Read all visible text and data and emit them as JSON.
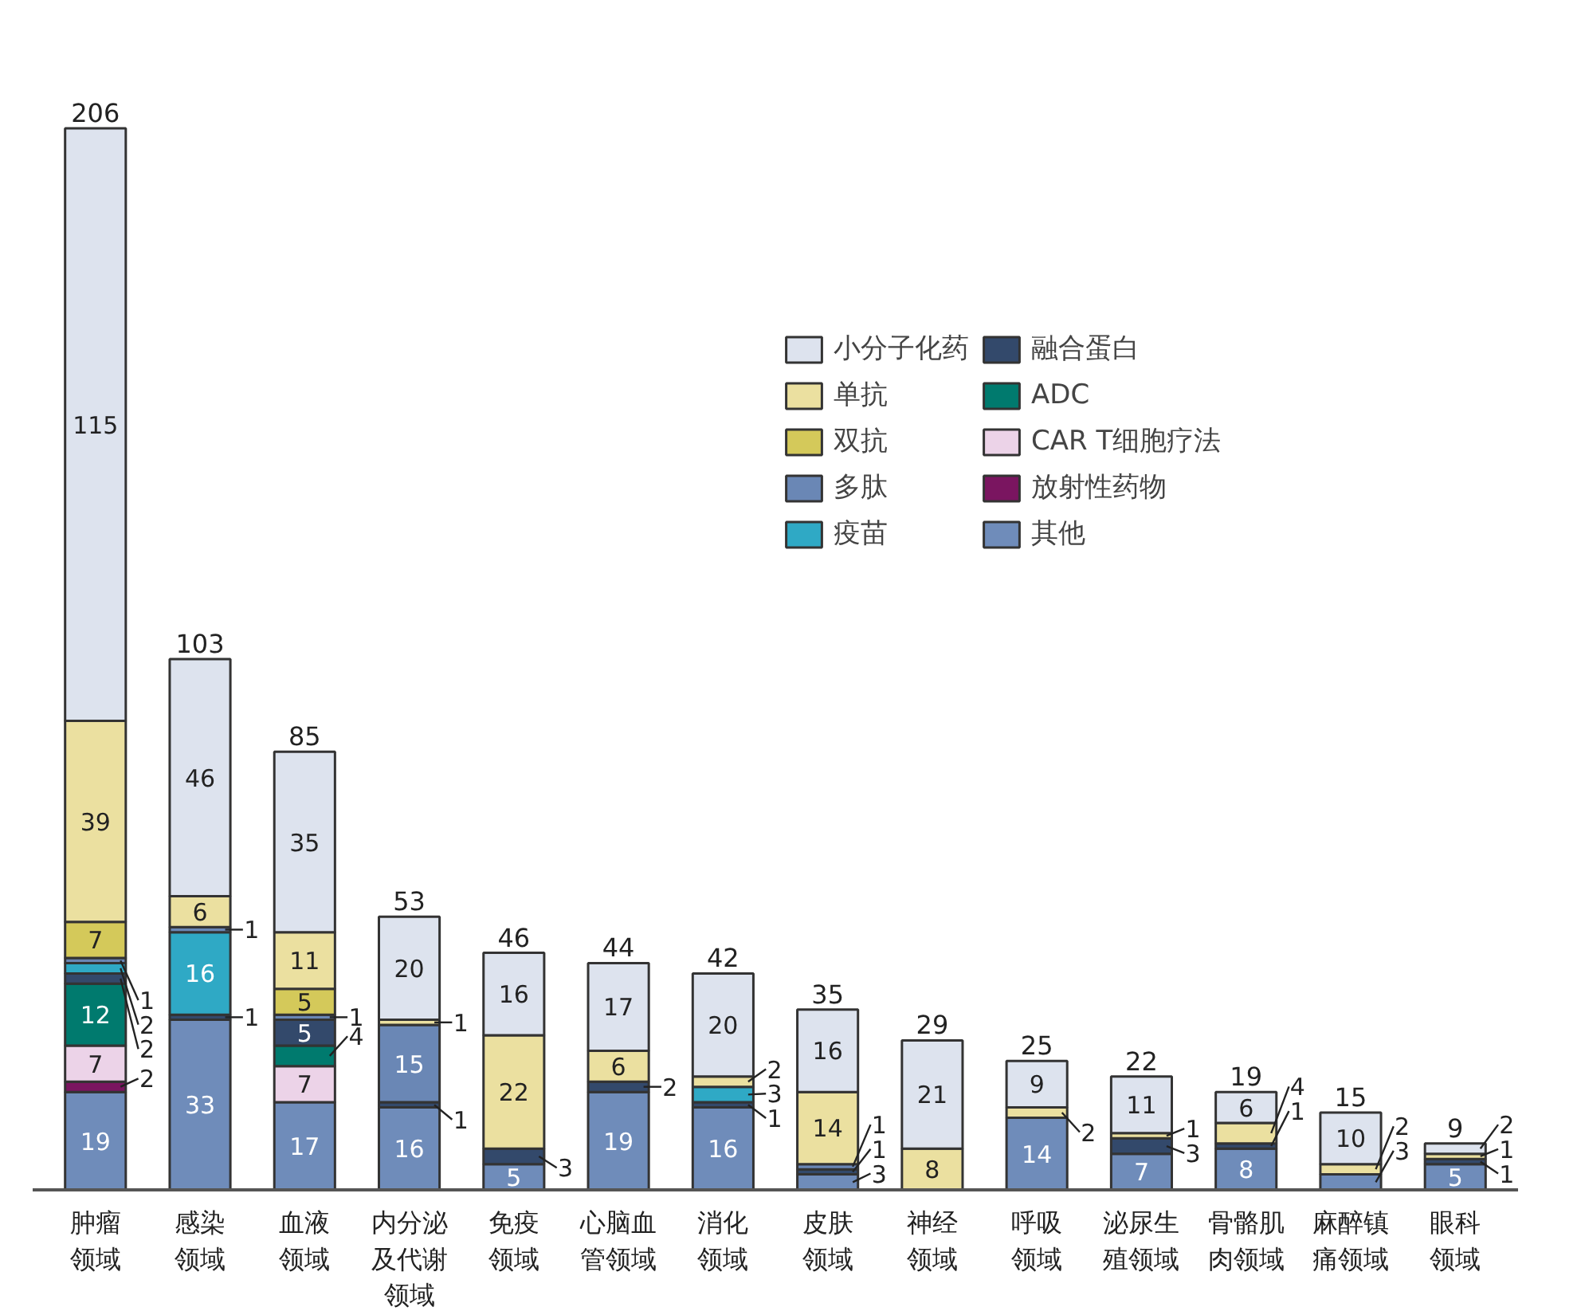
{
  "chart_data": {
    "type": "bar",
    "stacked": true,
    "data_labels": true,
    "legend": "top right",
    "grid": false,
    "categories": [
      "肿瘤领域",
      "感染领域",
      "血液领域",
      "内分泌及代谢领域",
      "免疫领域",
      "心脑血管领域",
      "消化领域",
      "皮肤领域",
      "神经领域",
      "呼吸领域",
      "泌尿生殖领域",
      "骨骼肌肉领域",
      "麻醉镇痛领域",
      "眼科领域"
    ],
    "series": [
      {
        "name": "其他",
        "color": "#6f8cba",
        "values": [
          19,
          33,
          17,
          16,
          5,
          19,
          16,
          3,
          null,
          14,
          7,
          8,
          3,
          5
        ]
      },
      {
        "name": "放射性药物",
        "color": "#7a1560",
        "values": [
          2,
          null,
          null,
          null,
          null,
          null,
          null,
          null,
          null,
          null,
          null,
          null,
          null,
          null
        ]
      },
      {
        "name": "CAR T细胞疗法",
        "color": "#ecd3e8",
        "values": [
          7,
          null,
          7,
          null,
          null,
          null,
          null,
          null,
          null,
          null,
          null,
          null,
          null,
          null
        ]
      },
      {
        "name": "ADC",
        "color": "#007a6e",
        "values": [
          12,
          null,
          4,
          null,
          null,
          null,
          null,
          null,
          null,
          null,
          null,
          null,
          null,
          null
        ]
      },
      {
        "name": "融合蛋白",
        "color": "#33496b",
        "values": [
          2,
          1,
          5,
          1,
          3,
          2,
          1,
          1,
          null,
          null,
          3,
          1,
          null,
          1
        ]
      },
      {
        "name": "疫苗",
        "color": "#2fa9c5",
        "values": [
          2,
          16,
          null,
          null,
          null,
          null,
          3,
          null,
          null,
          null,
          null,
          null,
          null,
          null
        ]
      },
      {
        "name": "多肽",
        "color": "#6a87b5",
        "values": [
          1,
          1,
          1,
          15,
          null,
          null,
          null,
          1,
          null,
          null,
          null,
          null,
          null,
          null
        ]
      },
      {
        "name": "双抗",
        "color": "#d4c95a",
        "values": [
          7,
          null,
          5,
          null,
          null,
          null,
          null,
          null,
          null,
          null,
          null,
          null,
          null,
          null
        ]
      },
      {
        "name": "单抗",
        "color": "#ebe0a0",
        "values": [
          39,
          6,
          11,
          1,
          22,
          6,
          2,
          14,
          8,
          2,
          1,
          4,
          2,
          1
        ]
      },
      {
        "name": "小分子化药",
        "color": "#dde3ee",
        "values": [
          115,
          46,
          35,
          20,
          16,
          17,
          20,
          16,
          21,
          9,
          11,
          6,
          10,
          2
        ]
      }
    ],
    "totals": [
      "206",
      "103",
      "85",
      "53",
      "46",
      "44",
      "42",
      "35",
      "29",
      "25",
      "22",
      "19",
      "15",
      "9"
    ]
  }
}
